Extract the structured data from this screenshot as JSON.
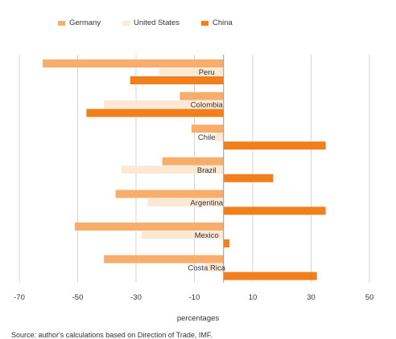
{
  "chart_data": {
    "type": "bar",
    "orientation": "horizontal",
    "categories": [
      "Peru",
      "Colombia",
      "Chile",
      "Brazil",
      "Argentina",
      "Mexico",
      "Costa Rica"
    ],
    "series": [
      {
        "name": "Germany",
        "color": "#f8ad6b",
        "values": [
          -62,
          -15,
          -11,
          -21,
          -37,
          -51,
          -41
        ]
      },
      {
        "name": "United States",
        "color": "#fce8d4",
        "values": [
          -22,
          -41,
          -3,
          -35,
          -26,
          -28,
          -6
        ]
      },
      {
        "name": "China",
        "color": "#f07f1c",
        "values": [
          -32,
          -47,
          35,
          17,
          35,
          2,
          32
        ]
      }
    ],
    "xlim": [
      -70,
      50
    ],
    "xticks": [
      -70,
      -50,
      -30,
      -10,
      10,
      30,
      50
    ],
    "xlabel": "percentages",
    "grid": "vertical",
    "legend_position": "top"
  },
  "source_note": "Source: author's calculations based on Direction of Trade, IMF."
}
